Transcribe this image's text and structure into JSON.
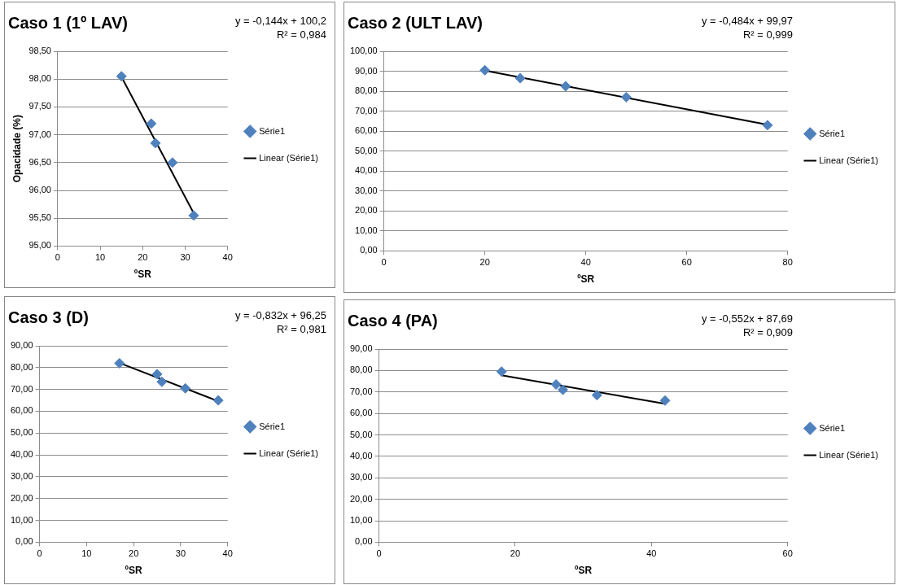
{
  "chart_data": [
    {
      "type": "scatter",
      "title": "Caso 1 (1º LAV)",
      "xlabel": "ºSR",
      "ylabel": "Opacidade (%)",
      "annotations": [
        "y = -0,144x + 100,2",
        "R² = 0,984"
      ],
      "xlim": [
        0,
        40
      ],
      "xticks": [
        0,
        10,
        20,
        30,
        40
      ],
      "ylim": [
        95,
        98.5
      ],
      "yticks": [
        {
          "value": 95,
          "label": "95,00"
        },
        {
          "value": 95.5,
          "label": "95,50"
        },
        {
          "value": 96,
          "label": "96,00"
        },
        {
          "value": 96.5,
          "label": "96,50"
        },
        {
          "value": 97,
          "label": "97,00"
        },
        {
          "value": 97.5,
          "label": "97,50"
        },
        {
          "value": 98,
          "label": "98,00"
        },
        {
          "value": 98.5,
          "label": "98,50"
        }
      ],
      "grid": "y",
      "legend": "right",
      "marker": "diamond",
      "series": [
        {
          "name": "Série1",
          "color": "#4f81bd",
          "x": [
            15,
            22,
            23,
            27,
            32
          ],
          "values": [
            98.05,
            97.2,
            96.85,
            96.5,
            95.55
          ]
        },
        {
          "name": "Linear (Série1)",
          "type": "line",
          "marker": "none",
          "color": "#000000",
          "x": [
            15,
            32
          ],
          "values": [
            98.04,
            95.59
          ]
        }
      ]
    },
    {
      "type": "scatter",
      "title": "Caso 2 (ULT LAV)",
      "xlabel": "ºSR",
      "annotations": [
        "y = -0,484x + 99,97",
        "R² = 0,999"
      ],
      "xlim": [
        0,
        80
      ],
      "xticks": [
        0,
        20,
        40,
        60,
        80
      ],
      "ylim": [
        0,
        100
      ],
      "yticks": [
        {
          "value": 0,
          "label": "0,00"
        },
        {
          "value": 10,
          "label": "10,00"
        },
        {
          "value": 20,
          "label": "20,00"
        },
        {
          "value": 30,
          "label": "30,00"
        },
        {
          "value": 40,
          "label": "40,00"
        },
        {
          "value": 50,
          "label": "50,00"
        },
        {
          "value": 60,
          "label": "60,00"
        },
        {
          "value": 70,
          "label": "70,00"
        },
        {
          "value": 80,
          "label": "80,00"
        },
        {
          "value": 90,
          "label": "90,00"
        },
        {
          "value": 100,
          "label": "100,00"
        }
      ],
      "grid": "y",
      "legend": "right",
      "marker": "diamond",
      "series": [
        {
          "name": "Série1",
          "color": "#4f81bd",
          "x": [
            20,
            27,
            36,
            48,
            76
          ],
          "values": [
            90.5,
            86.5,
            82.5,
            77,
            63
          ]
        },
        {
          "name": "Linear (Série1)",
          "type": "line",
          "marker": "none",
          "color": "#000000",
          "x": [
            20,
            76
          ],
          "values": [
            90.3,
            63.2
          ]
        }
      ]
    },
    {
      "type": "scatter",
      "title": "Caso 3 (D)",
      "xlabel": "ºSR",
      "annotations": [
        "y = -0,832x + 96,25",
        "R² = 0,981"
      ],
      "xlim": [
        0,
        40
      ],
      "xticks": [
        0,
        10,
        20,
        30,
        40
      ],
      "ylim": [
        0,
        90
      ],
      "yticks": [
        {
          "value": 0,
          "label": "0,00"
        },
        {
          "value": 10,
          "label": "10,00"
        },
        {
          "value": 20,
          "label": "20,00"
        },
        {
          "value": 30,
          "label": "30,00"
        },
        {
          "value": 40,
          "label": "40,00"
        },
        {
          "value": 50,
          "label": "50,00"
        },
        {
          "value": 60,
          "label": "60,00"
        },
        {
          "value": 70,
          "label": "70,00"
        },
        {
          "value": 80,
          "label": "80,00"
        },
        {
          "value": 90,
          "label": "90,00"
        }
      ],
      "grid": "y",
      "legend": "right",
      "marker": "diamond",
      "series": [
        {
          "name": "Série1",
          "color": "#4f81bd",
          "x": [
            17,
            25,
            26,
            31,
            38
          ],
          "values": [
            82,
            77,
            73.5,
            70.5,
            65
          ]
        },
        {
          "name": "Linear (Série1)",
          "type": "line",
          "marker": "none",
          "color": "#000000",
          "x": [
            17,
            38
          ],
          "values": [
            82.1,
            64.6
          ]
        }
      ]
    },
    {
      "type": "scatter",
      "title": "Caso 4 (PA)",
      "xlabel": "ºSR",
      "annotations": [
        "y = -0,552x + 87,69",
        "R² = 0,909"
      ],
      "xlim": [
        0,
        60
      ],
      "xticks": [
        0,
        20,
        40,
        60
      ],
      "ylim": [
        0,
        90
      ],
      "yticks": [
        {
          "value": 0,
          "label": "0,00"
        },
        {
          "value": 10,
          "label": "10,00"
        },
        {
          "value": 20,
          "label": "20,00"
        },
        {
          "value": 30,
          "label": "30,00"
        },
        {
          "value": 40,
          "label": "40,00"
        },
        {
          "value": 50,
          "label": "50,00"
        },
        {
          "value": 60,
          "label": "60,00"
        },
        {
          "value": 70,
          "label": "70,00"
        },
        {
          "value": 80,
          "label": "80,00"
        },
        {
          "value": 90,
          "label": "90,00"
        }
      ],
      "grid": "y",
      "legend": "right",
      "marker": "diamond",
      "series": [
        {
          "name": "Série1",
          "color": "#4f81bd",
          "x": [
            18,
            26,
            27,
            32,
            42
          ],
          "values": [
            79.5,
            73.5,
            71,
            68.5,
            66
          ]
        },
        {
          "name": "Linear (Série1)",
          "type": "line",
          "marker": "none",
          "color": "#000000",
          "x": [
            18,
            42
          ],
          "values": [
            77.8,
            64.5
          ]
        }
      ]
    }
  ]
}
